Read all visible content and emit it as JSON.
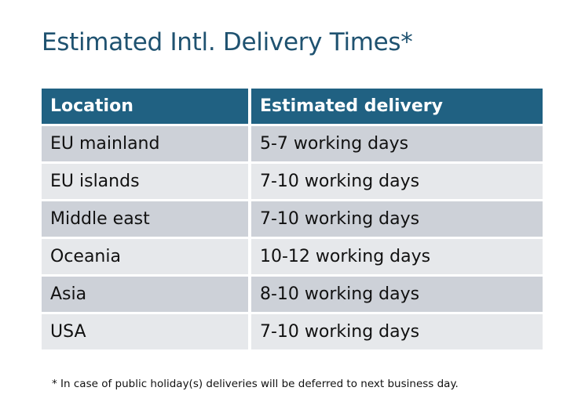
{
  "title": "Estimated Intl. Delivery Times*",
  "table": {
    "headers": [
      "Location",
      "Estimated delivery"
    ],
    "rows": [
      [
        "EU mainland",
        "5-7 working days"
      ],
      [
        "EU islands",
        "7-10 working days"
      ],
      [
        "Middle east",
        "7-10 working days"
      ],
      [
        "Oceania",
        "10-12 working days"
      ],
      [
        "Asia",
        "8-10 working days"
      ],
      [
        "USA",
        "7-10 working days"
      ]
    ]
  },
  "footnote": "* In case of public holiday(s) deliveries will be deferred to next business day.",
  "colors": {
    "header": "#206182",
    "title": "#1f5270",
    "row_dark": "#cdd1d8",
    "row_light": "#e6e8eb"
  }
}
